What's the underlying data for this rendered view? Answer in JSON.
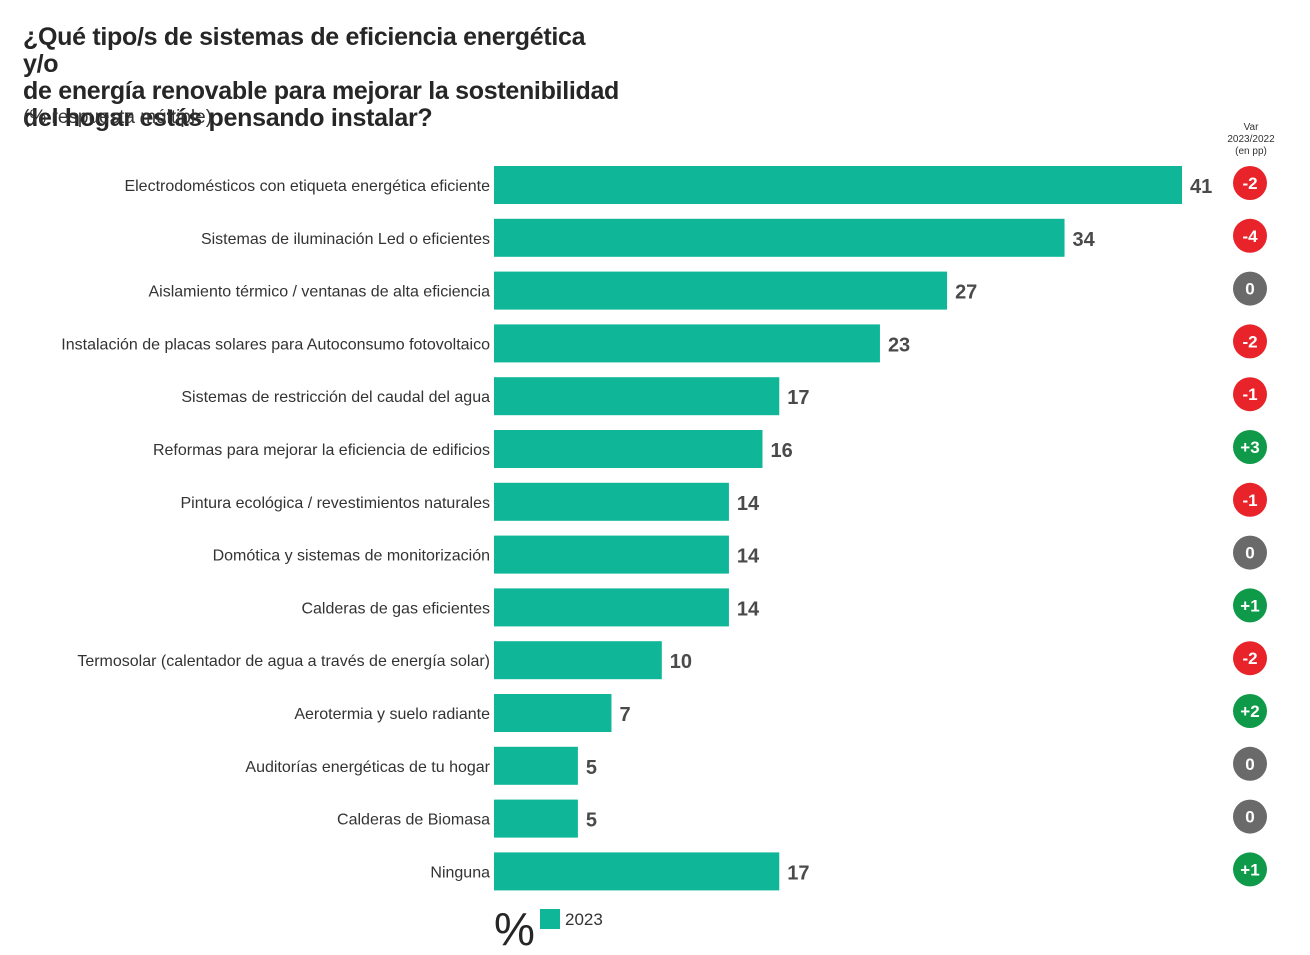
{
  "title_lines": [
    "¿Qué tipo/s de sistemas de eficiencia energética y/o",
    "de energía renovable para mejorar la sostenibilidad",
    "del hogar estás pensando instalar?"
  ],
  "subtitle": "(% respuesta múltiple)",
  "var_header": [
    "Var",
    "2023/2022",
    "(en pp)"
  ],
  "colors": {
    "bar": "#0fb698",
    "negative": "#e8232a",
    "zero": "#6a6a6a",
    "positive": "#0e9a48"
  },
  "legend": {
    "unit": "%",
    "series_label": "2023"
  },
  "chart_data": {
    "type": "bar",
    "orientation": "horizontal",
    "categories": [
      "Electrodomésticos con etiqueta energética eficiente",
      "Sistemas de iluminación Led o eficientes",
      "Aislamiento térmico / ventanas de alta eficiencia",
      "Instalación de placas solares para Autoconsumo fotovoltaico",
      "Sistemas de restricción del caudal del agua",
      "Reformas para mejorar la eficiencia de edificios",
      "Pintura ecológica / revestimientos naturales",
      "Domótica y sistemas de monitorización",
      "Calderas de gas eficientes",
      "Termosolar (calentador de agua a través de energía solar)",
      "Aerotermia y suelo radiante",
      "Auditorías energéticas de tu hogar",
      "Calderas de Biomasa",
      "Ninguna"
    ],
    "series": [
      {
        "name": "2023",
        "values": [
          41,
          34,
          27,
          23,
          17,
          16,
          14,
          14,
          14,
          10,
          7,
          5,
          5,
          17
        ]
      }
    ],
    "variation": [
      "-2",
      "-4",
      "0",
      "-2",
      "-1",
      "+3",
      "-1",
      "0",
      "+1",
      "-2",
      "+2",
      "0",
      "0",
      "+1"
    ],
    "xlim": [
      0,
      41
    ],
    "grid": false,
    "legend_position": "bottom"
  }
}
